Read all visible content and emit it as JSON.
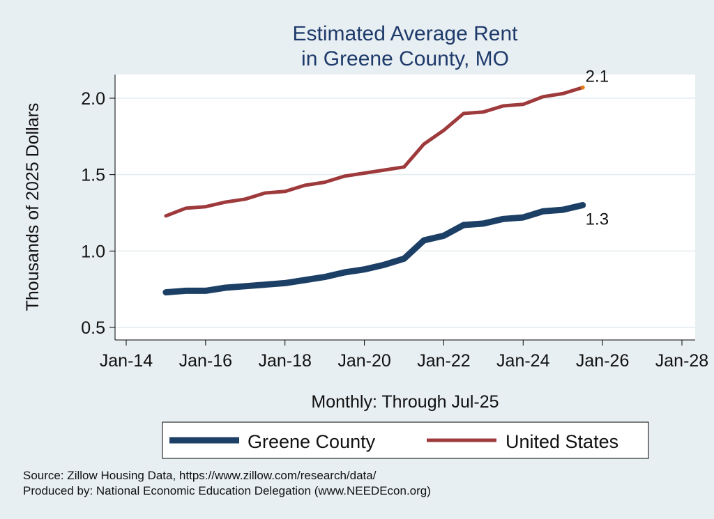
{
  "chart_data": {
    "type": "line",
    "title": [
      "Estimated Average Rent",
      "in Greene County, MO"
    ],
    "xlabel": "Monthly: Through Jul-25",
    "ylabel": "Thousands of 2025 Dollars",
    "ylim": [
      0.45,
      2.15
    ],
    "xlim": [
      "2014-01",
      "2028-01"
    ],
    "yticks": [
      "0.5",
      "1.0",
      "1.5",
      "2.0"
    ],
    "xticks": [
      "Jan-14",
      "Jan-16",
      "Jan-18",
      "Jan-20",
      "Jan-22",
      "Jan-24",
      "Jan-26",
      "Jan-28"
    ],
    "grid": true,
    "legend_position": "bottom",
    "series": [
      {
        "name": "Greene County",
        "color": "#1c3f66",
        "end_label": "1.3",
        "x": [
          "2015-01",
          "2015-07",
          "2016-01",
          "2016-07",
          "2017-01",
          "2017-07",
          "2018-01",
          "2018-07",
          "2019-01",
          "2019-07",
          "2020-01",
          "2020-07",
          "2021-01",
          "2021-07",
          "2022-01",
          "2022-07",
          "2023-01",
          "2023-07",
          "2024-01",
          "2024-07",
          "2025-01",
          "2025-07"
        ],
        "y": [
          0.73,
          0.74,
          0.74,
          0.76,
          0.77,
          0.78,
          0.79,
          0.81,
          0.83,
          0.86,
          0.88,
          0.91,
          0.95,
          1.07,
          1.1,
          1.17,
          1.18,
          1.21,
          1.22,
          1.26,
          1.27,
          1.3
        ]
      },
      {
        "name": "United States",
        "color": "#9e3a3c",
        "end_label": "2.1",
        "x": [
          "2015-01",
          "2015-07",
          "2016-01",
          "2016-07",
          "2017-01",
          "2017-07",
          "2018-01",
          "2018-07",
          "2019-01",
          "2019-07",
          "2020-01",
          "2020-07",
          "2021-01",
          "2021-07",
          "2022-01",
          "2022-07",
          "2023-01",
          "2023-07",
          "2024-01",
          "2024-07",
          "2025-01",
          "2025-07"
        ],
        "y": [
          1.23,
          1.28,
          1.29,
          1.32,
          1.34,
          1.38,
          1.39,
          1.43,
          1.45,
          1.49,
          1.51,
          1.53,
          1.55,
          1.7,
          1.79,
          1.9,
          1.91,
          1.95,
          1.96,
          2.01,
          2.03,
          2.07
        ]
      }
    ]
  },
  "footer": {
    "source": "Source: Zillow Housing Data, https://www.zillow.com/research/data/",
    "produced_by": "Produced by: National Economic Education Delegation (www.NEEDEcon.org)"
  }
}
